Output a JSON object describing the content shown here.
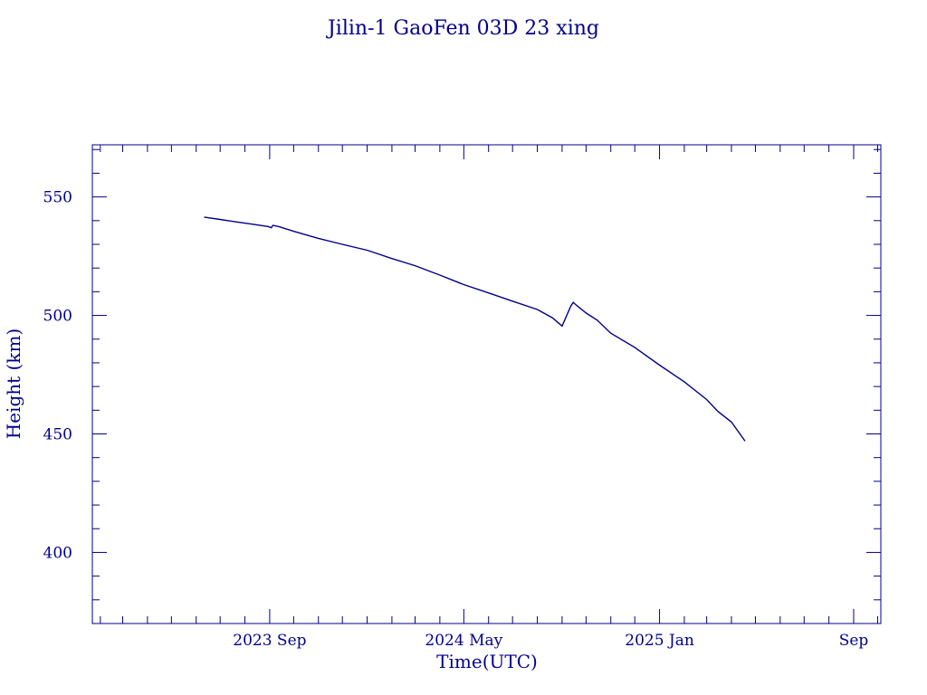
{
  "chart_data": {
    "type": "line",
    "title": "Jilin-1 GaoFen 03D 23 xing",
    "xlabel": "Time(UTC)",
    "ylabel": "Height (km)",
    "ylim": [
      370,
      572
    ],
    "xlim": [
      "2023-01-22",
      "2025-10-05"
    ],
    "x_ticks": [
      {
        "date": "2023-09-01",
        "label": "2023 Sep"
      },
      {
        "date": "2024-05-01",
        "label": "2024 May"
      },
      {
        "date": "2025-01-01",
        "label": "2025 Jan"
      },
      {
        "date": "2025-09-01",
        "label": "Sep"
      }
    ],
    "y_ticks": [
      400,
      450,
      500,
      550
    ],
    "grid": false,
    "color": "#00008b",
    "series": [
      {
        "x": [
          "2023-06-11",
          "2023-07-01",
          "2023-07-20",
          "2023-08-10",
          "2023-08-30",
          "2023-09-03",
          "2023-09-05",
          "2023-09-12",
          "2023-10-01",
          "2023-11-01",
          "2023-12-01",
          "2024-01-01",
          "2024-02-01",
          "2024-03-01",
          "2024-04-01",
          "2024-05-01",
          "2024-06-01",
          "2024-07-01",
          "2024-08-01",
          "2024-08-20",
          "2024-09-01",
          "2024-09-12",
          "2024-09-15",
          "2024-09-20",
          "2024-10-01",
          "2024-10-15",
          "2024-11-01",
          "2024-12-01",
          "2025-01-01",
          "2025-02-01",
          "2025-03-01",
          "2025-03-15",
          "2025-04-01",
          "2025-04-18"
        ],
        "y": [
          541.5,
          540.5,
          539.5,
          538.5,
          537.5,
          537.0,
          538.0,
          537.5,
          535.5,
          532.5,
          530.0,
          527.5,
          524.0,
          521.0,
          517.0,
          513.0,
          509.5,
          506.0,
          502.5,
          499.0,
          495.5,
          504.0,
          505.5,
          504.0,
          501.0,
          498.0,
          492.5,
          486.5,
          479.0,
          472.0,
          464.5,
          459.5,
          455.0,
          447.0
        ]
      }
    ]
  }
}
